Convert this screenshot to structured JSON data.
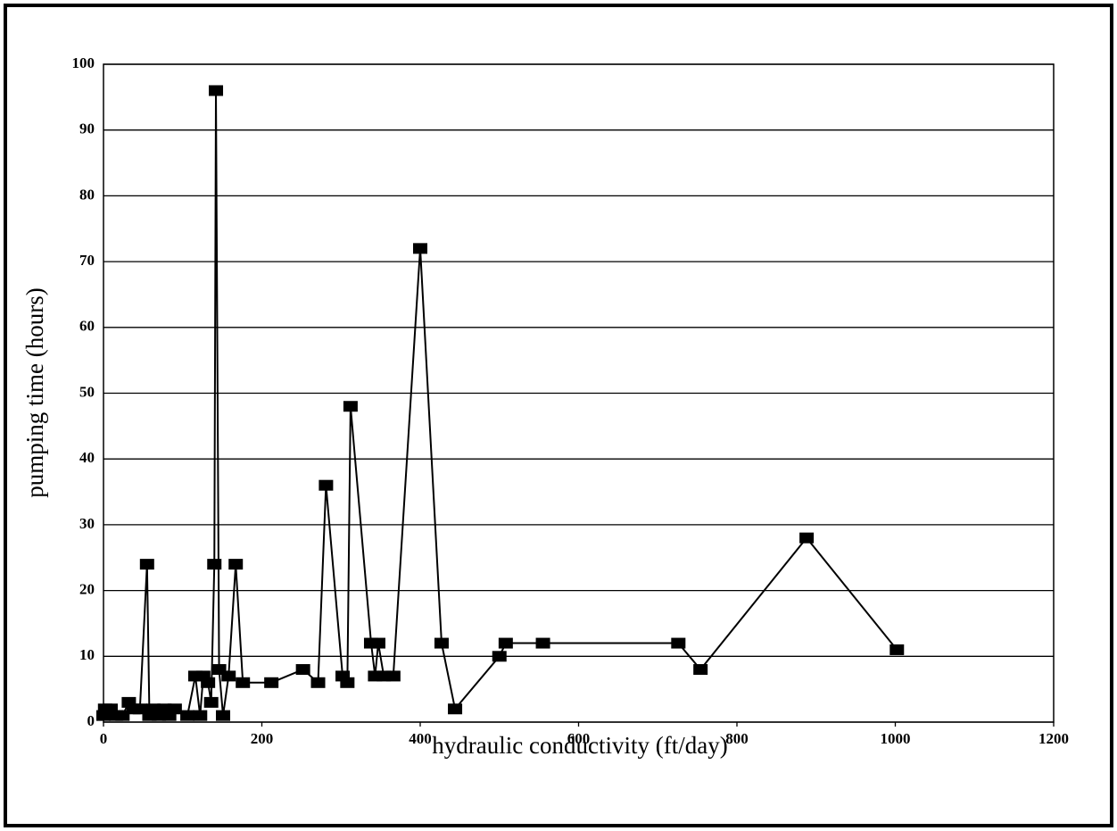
{
  "chart_data": {
    "type": "line",
    "xlabel": "hydraulic conductivity (ft/day)",
    "ylabel": "pumping time (hours)",
    "x": [
      0,
      2,
      9,
      16,
      24,
      32,
      38,
      46,
      55,
      58,
      63,
      70,
      77,
      83,
      90,
      106,
      116,
      122,
      126,
      132,
      136,
      140,
      142,
      146,
      151,
      158,
      167,
      176,
      212,
      252,
      271,
      281,
      302,
      308,
      312,
      338,
      343,
      347,
      354,
      366,
      400,
      427,
      444,
      500,
      508,
      555,
      726,
      754,
      888,
      1002
    ],
    "series": [
      {
        "color": "#000000",
        "values": [
          1,
          2,
          2,
          1,
          1,
          3,
          2,
          2,
          24,
          1,
          2,
          1,
          2,
          1,
          2,
          1,
          7,
          1,
          7,
          6,
          3,
          24,
          96,
          8,
          1,
          7,
          24,
          6,
          6,
          8,
          6,
          36,
          7,
          6,
          48,
          12,
          7,
          12,
          7,
          7,
          72,
          12,
          2,
          10,
          12,
          12,
          12,
          8,
          28,
          11
        ]
      }
    ],
    "xlim": [
      0,
      1200
    ],
    "xticks": [
      0,
      200,
      400,
      600,
      800,
      1000,
      1200
    ],
    "ylim": [
      0,
      100
    ],
    "yticks": [
      0,
      10,
      20,
      30,
      40,
      50,
      60,
      70,
      80,
      90,
      100
    ],
    "grid": true
  }
}
